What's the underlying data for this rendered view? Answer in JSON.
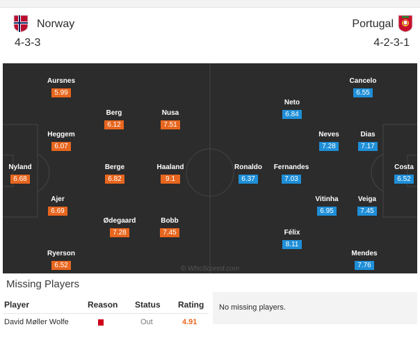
{
  "home": {
    "name": "Norway",
    "formation": "4-3-3",
    "flag": "norway-flag",
    "players": [
      {
        "name": "Aursnes",
        "rating": "5.99"
      },
      {
        "name": "Berg",
        "rating": "6.12"
      },
      {
        "name": "Nusa",
        "rating": "7.51"
      },
      {
        "name": "Heggem",
        "rating": "6.07"
      },
      {
        "name": "Nyland",
        "rating": "6.68"
      },
      {
        "name": "Berge",
        "rating": "6.82"
      },
      {
        "name": "Haaland",
        "rating": "9.1"
      },
      {
        "name": "Ajer",
        "rating": "6.69"
      },
      {
        "name": "Ødegaard",
        "rating": "7.28"
      },
      {
        "name": "Bobb",
        "rating": "7.45"
      },
      {
        "name": "Ryerson",
        "rating": "6.52"
      }
    ]
  },
  "away": {
    "name": "Portugal",
    "formation": "4-2-3-1",
    "flag": "portugal-flag",
    "players": [
      {
        "name": "Cancelo",
        "rating": "6.55"
      },
      {
        "name": "Neto",
        "rating": "6.84"
      },
      {
        "name": "Neves",
        "rating": "7.28"
      },
      {
        "name": "Dias",
        "rating": "7.17"
      },
      {
        "name": "Ronaldo",
        "rating": "6.37"
      },
      {
        "name": "Fernandes",
        "rating": "7.03"
      },
      {
        "name": "Costa",
        "rating": "6.52"
      },
      {
        "name": "Vitinha",
        "rating": "6.95"
      },
      {
        "name": "Veiga",
        "rating": "7.45"
      },
      {
        "name": "Félix",
        "rating": "8.11"
      },
      {
        "name": "Mendes",
        "rating": "7.76"
      }
    ]
  },
  "watermark": "© WhoScored.com",
  "missing": {
    "title": "Missing Players",
    "headers": {
      "player": "Player",
      "reason": "Reason",
      "status": "Status",
      "rating": "Rating"
    },
    "rows": [
      {
        "player": "David Møller Wolfe",
        "reason": "red-card",
        "status": "Out",
        "rating": "4.91"
      }
    ],
    "away_empty": "No missing players."
  },
  "colors": {
    "home_rating": "#e8661e",
    "away_rating": "#1f8fd8",
    "rating_text": "#e8661e",
    "pitch": "#2c2c2c",
    "red_card": "#d0021b"
  }
}
